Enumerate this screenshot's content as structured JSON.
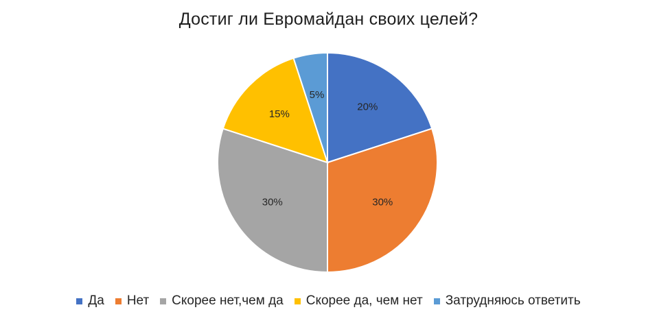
{
  "chart_data": {
    "type": "pie",
    "title": "Достиг ли Евромайдан своих целей?",
    "slices": [
      {
        "label": "Да",
        "value": 20,
        "display": "20%",
        "color": "#4472C4"
      },
      {
        "label": "Нет",
        "value": 30,
        "display": "30%",
        "color": "#ED7D31"
      },
      {
        "label": "Скорее нет,чем да",
        "value": 30,
        "display": "30%",
        "color": "#A5A5A5"
      },
      {
        "label": "Скорее да, чем нет",
        "value": 15,
        "display": "15%",
        "color": "#FFC000"
      },
      {
        "label": "Затрудняюсь ответить",
        "value": 5,
        "display": "5%",
        "color": "#5B9BD5"
      }
    ],
    "legend_position": "bottom",
    "start_angle": "12 o'clock, clockwise"
  }
}
